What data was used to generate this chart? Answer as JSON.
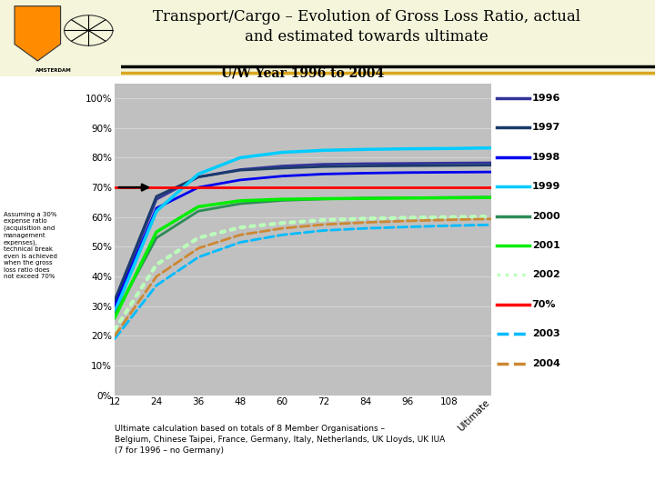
{
  "title_main": "Transport/Cargo – Evolution of Gross Loss Ratio, actual\nand estimated towards ultimate",
  "subtitle": "U/W Year 1996 to 2004",
  "x_values": [
    12,
    24,
    36,
    48,
    60,
    72,
    84,
    96,
    108,
    120
  ],
  "x_tick_labels": [
    "12",
    "24",
    "36",
    "48",
    "60",
    "72",
    "84",
    "96",
    "108",
    "Ultimate"
  ],
  "ylim": [
    0,
    1.05
  ],
  "yticks": [
    0.0,
    0.1,
    0.2,
    0.3,
    0.4,
    0.5,
    0.6,
    0.7,
    0.8,
    0.9,
    1.0
  ],
  "ytick_labels": [
    "0%",
    "10%",
    "20%",
    "30%",
    "40%",
    "50%",
    "60%",
    "70%",
    "80%",
    "90%",
    "100%"
  ],
  "line_70pct": 0.7,
  "series": [
    {
      "label": "1996",
      "color": "#333399",
      "style": "solid",
      "lw": 2.0,
      "x": [
        12,
        24,
        36,
        48,
        60,
        72,
        84,
        96,
        108,
        120
      ],
      "y": [
        0.31,
        0.66,
        0.735,
        0.76,
        0.772,
        0.778,
        0.78,
        0.781,
        0.782,
        0.783
      ]
    },
    {
      "label": "1997",
      "color": "#1A3A6B",
      "style": "solid",
      "lw": 2.0,
      "x": [
        12,
        24,
        36,
        48,
        60,
        72,
        84,
        96,
        108,
        120
      ],
      "y": [
        0.32,
        0.67,
        0.735,
        0.758,
        0.765,
        0.77,
        0.772,
        0.773,
        0.774,
        0.775
      ]
    },
    {
      "label": "1998",
      "color": "#0000EE",
      "style": "solid",
      "lw": 2.0,
      "x": [
        12,
        24,
        36,
        48,
        60,
        72,
        84,
        96,
        108,
        120
      ],
      "y": [
        0.3,
        0.63,
        0.7,
        0.725,
        0.738,
        0.745,
        0.748,
        0.75,
        0.751,
        0.752
      ]
    },
    {
      "label": "1999",
      "color": "#00CCFF",
      "style": "solid",
      "lw": 2.5,
      "x": [
        12,
        24,
        36,
        48,
        60,
        72,
        84,
        96,
        108,
        120
      ],
      "y": [
        0.28,
        0.62,
        0.745,
        0.8,
        0.818,
        0.825,
        0.828,
        0.83,
        0.831,
        0.833
      ]
    },
    {
      "label": "2000",
      "color": "#2E8B57",
      "style": "solid",
      "lw": 2.0,
      "x": [
        12,
        24,
        36,
        48,
        60,
        72,
        84,
        96,
        108,
        120
      ],
      "y": [
        0.27,
        0.53,
        0.62,
        0.645,
        0.656,
        0.661,
        0.664,
        0.665,
        0.666,
        0.667
      ]
    },
    {
      "label": "2001",
      "color": "#00EE00",
      "style": "solid",
      "lw": 2.5,
      "x": [
        12,
        24,
        36,
        48,
        60,
        72,
        84,
        96,
        108,
        120
      ],
      "y": [
        0.26,
        0.55,
        0.635,
        0.655,
        0.66,
        0.662,
        0.663,
        0.664,
        0.665,
        0.666
      ]
    },
    {
      "label": "2002",
      "color": "#BBFFBB",
      "style": "dotted",
      "lw": 3.0,
      "x": [
        12,
        24,
        36,
        48,
        60,
        72,
        84,
        96,
        108,
        120
      ],
      "y": [
        0.22,
        0.44,
        0.53,
        0.565,
        0.58,
        0.59,
        0.595,
        0.598,
        0.6,
        0.602
      ]
    },
    {
      "label": "2003",
      "color": "#00BBFF",
      "style": "dashed",
      "lw": 2.0,
      "x": [
        12,
        24,
        36,
        48,
        60,
        72,
        84,
        96,
        108,
        120
      ],
      "y": [
        0.19,
        0.37,
        0.465,
        0.515,
        0.54,
        0.555,
        0.562,
        0.567,
        0.571,
        0.574
      ]
    },
    {
      "label": "2004",
      "color": "#CC8833",
      "style": "dashed",
      "lw": 2.0,
      "x": [
        12,
        24,
        36,
        48,
        60,
        72,
        84,
        96,
        108,
        120
      ],
      "y": [
        0.2,
        0.4,
        0.495,
        0.54,
        0.562,
        0.575,
        0.582,
        0.587,
        0.591,
        0.594
      ]
    }
  ],
  "legend_entries": [
    {
      "label": "1996",
      "color": "#333399",
      "style": "solid"
    },
    {
      "label": "1997",
      "color": "#1A3A6B",
      "style": "solid"
    },
    {
      "label": "1998",
      "color": "#0000EE",
      "style": "solid"
    },
    {
      "label": "1999",
      "color": "#00CCFF",
      "style": "solid"
    },
    {
      "label": "2000",
      "color": "#2E8B57",
      "style": "solid"
    },
    {
      "label": "2001",
      "color": "#00EE00",
      "style": "solid"
    },
    {
      "label": "2002",
      "color": "#BBFFBB",
      "style": "dotted"
    },
    {
      "label": "70%",
      "color": "#FF0000",
      "style": "solid"
    },
    {
      "label": "2003",
      "color": "#00BBFF",
      "style": "dashed"
    },
    {
      "label": "2004",
      "color": "#CC8833",
      "style": "dashed"
    }
  ],
  "annotation_text": "Assuming a 30%\nexpense ratio\n(acquisition and\nmanagement\nexpenses),\ntechnical break\neven is achieved\nwhen the gross\nloss ratio does\nnot exceed 70%",
  "footnote": "Ultimate calculation based on totals of 8 Member Organisations –\nBelgium, Chinese Taipei, France, Germany, Italy, Netherlands, UK Lloyds, UK IUA\n(7 for 1996 – no Germany)",
  "header_bg": "#F5F5DC",
  "plot_area_color": "#C0C0C0",
  "fig_bg": "#FFFFFF",
  "fig_w": 7.2,
  "fig_h": 5.4,
  "dpi": 100
}
